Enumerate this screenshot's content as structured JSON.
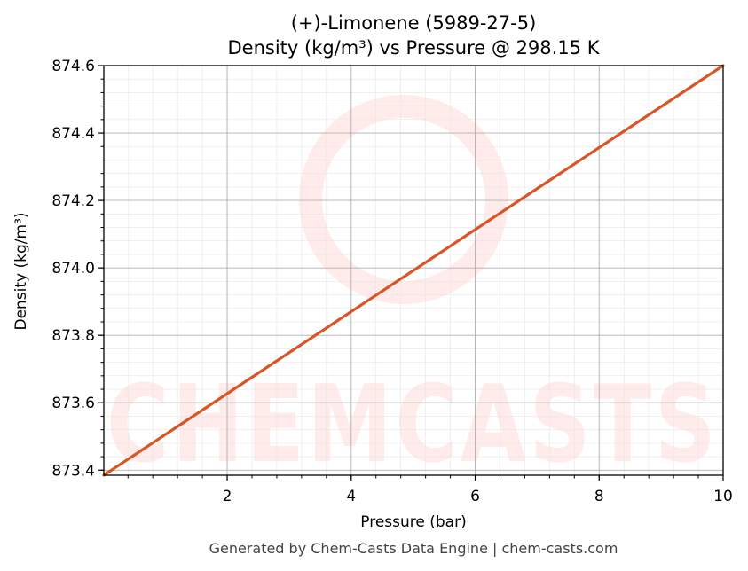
{
  "chart_data": {
    "type": "line",
    "title_line1": "(+)-Limonene (5989-27-5)",
    "title_line2": "Density (kg/m³) vs Pressure @ 298.15 K",
    "xlabel": "Pressure (bar)",
    "ylabel": "Density (kg/m³)",
    "xlim": [
      0.01,
      10
    ],
    "ylim": [
      873.385,
      874.6
    ],
    "x_ticks": [
      2,
      4,
      6,
      8,
      10
    ],
    "y_ticks": [
      873.4,
      873.6,
      873.8,
      874.0,
      874.2,
      874.4,
      874.6
    ],
    "x_tick_labels": [
      "2",
      "4",
      "6",
      "8",
      "10"
    ],
    "y_tick_labels": [
      "873.4",
      "873.6",
      "873.8",
      "874.0",
      "874.2",
      "874.4",
      "874.6"
    ],
    "grid": true,
    "series": [
      {
        "color": "#d95525",
        "x": [
          0.01,
          10
        ],
        "y": [
          873.385,
          874.6
        ]
      }
    ]
  },
  "watermark": {
    "text": "CHEMCASTS",
    "color": "#ffdcd8"
  },
  "footer": "Generated by Chem-Casts Data Engine | chem-casts.com"
}
